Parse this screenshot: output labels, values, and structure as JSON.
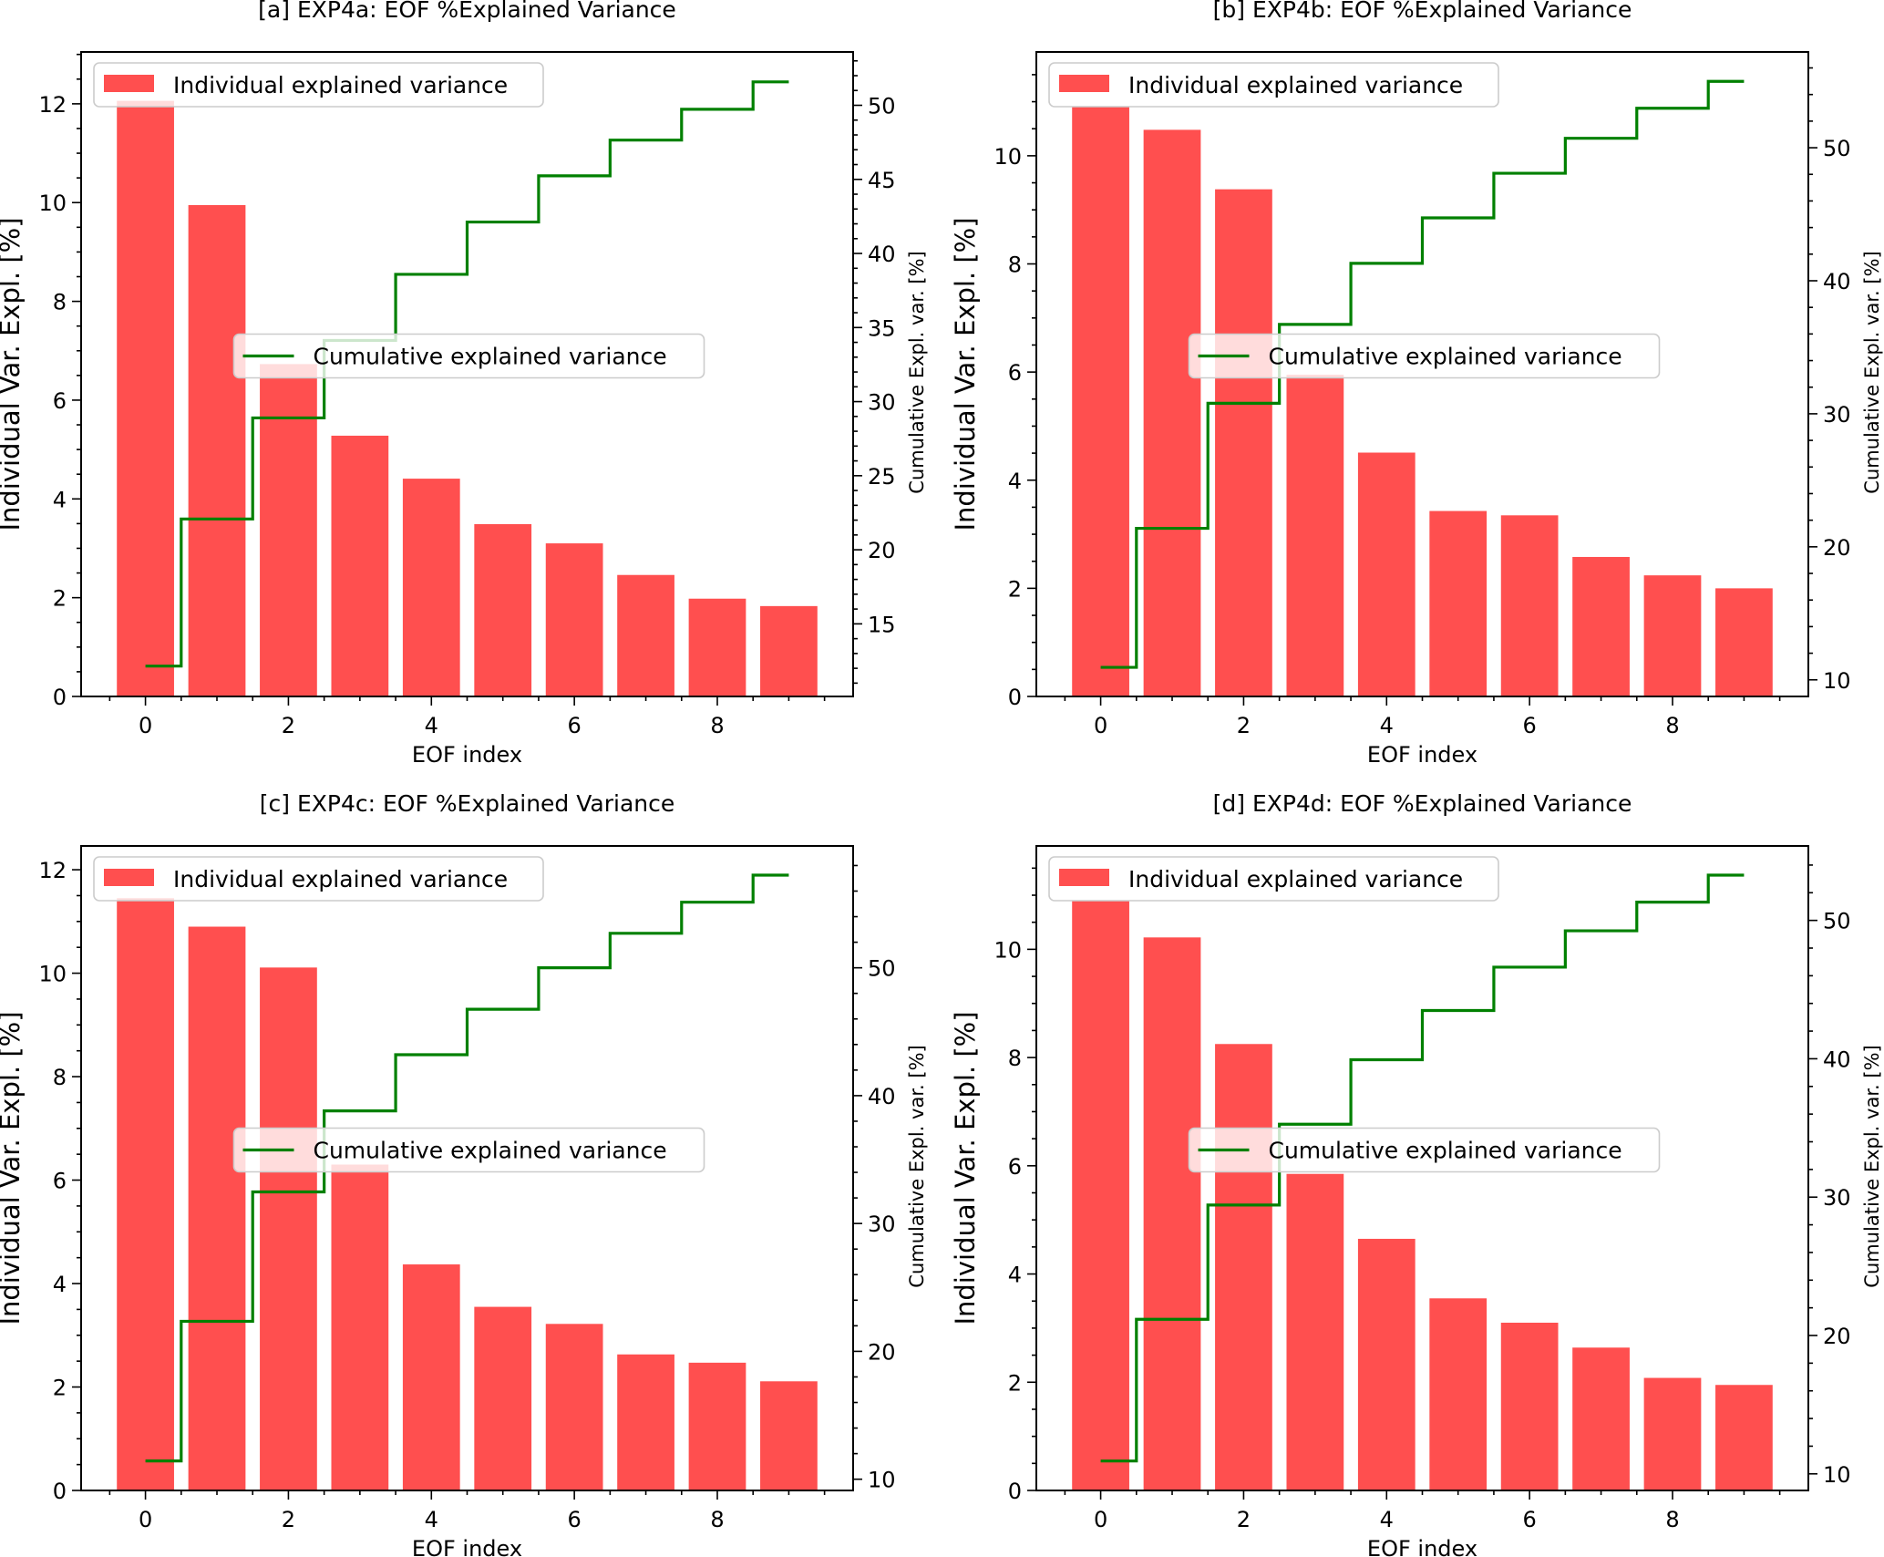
{
  "figure": {
    "layout": "2x2 grid",
    "bar_color": "#FF4F4F",
    "line_color": "#008000",
    "legend_frame_color": "#CCCCCC"
  },
  "chart_data": [
    {
      "type": "bar",
      "panel": "a",
      "title": "[a] EXP4a: EOF %Explained Variance",
      "xlabel": "EOF index",
      "ylabel": "Individual Var. Expl. [%]",
      "y2label": "Cumulative Expl. var. [%]",
      "categories": [
        0,
        1,
        2,
        3,
        4,
        5,
        6,
        7,
        8,
        9
      ],
      "xlim": [
        -0.9,
        9.9
      ],
      "xticks": [
        0,
        2,
        4,
        6,
        8
      ],
      "ylim": [
        0,
        13.05
      ],
      "yticks": [
        0,
        2,
        4,
        6,
        8,
        10,
        12
      ],
      "y2lim": [
        10.1,
        53.6
      ],
      "y2ticks": [
        15,
        20,
        25,
        30,
        35,
        40,
        45,
        50
      ],
      "y2minor_step": 1,
      "series": [
        {
          "name": "Individual explained variance",
          "type": "bar",
          "axis": "left",
          "values": [
            12.06,
            9.95,
            6.73,
            5.28,
            4.41,
            3.49,
            3.1,
            2.46,
            1.98,
            1.83
          ]
        },
        {
          "name": "Cumulative explained variance",
          "type": "step",
          "axis": "right",
          "values": [
            12.15,
            22.08,
            28.9,
            34.13,
            38.59,
            42.12,
            45.24,
            47.65,
            49.73,
            51.58
          ]
        }
      ],
      "legend": [
        {
          "label": "Individual explained variance",
          "placement": "upper-left"
        },
        {
          "label": "Cumulative explained variance",
          "placement": "center"
        }
      ]
    },
    {
      "type": "bar",
      "panel": "b",
      "title": "[b] EXP4b: EOF %Explained Variance",
      "xlabel": "EOF index",
      "ylabel": "Individual Var. Expl. [%]",
      "y2label": "Cumulative Expl. var. [%]",
      "categories": [
        0,
        1,
        2,
        3,
        4,
        5,
        6,
        7,
        8,
        9
      ],
      "xlim": [
        -0.9,
        9.9
      ],
      "xticks": [
        0,
        2,
        4,
        6,
        8
      ],
      "ylim": [
        0,
        11.92
      ],
      "yticks": [
        0,
        2,
        4,
        6,
        8,
        10
      ],
      "y2lim": [
        8.75,
        57.2
      ],
      "y2ticks": [
        10,
        20,
        30,
        40,
        50
      ],
      "y2minor_step": 2,
      "series": [
        {
          "name": "Individual explained variance",
          "type": "bar",
          "axis": "left",
          "values": [
            10.9,
            10.48,
            9.38,
            5.95,
            4.51,
            3.43,
            3.35,
            2.58,
            2.24,
            2.0
          ]
        },
        {
          "name": "Cumulative explained variance",
          "type": "step",
          "axis": "right",
          "values": [
            10.94,
            21.39,
            30.79,
            36.72,
            41.31,
            44.73,
            48.08,
            50.71,
            52.97,
            54.99
          ]
        }
      ],
      "legend": [
        {
          "label": "Individual explained variance",
          "placement": "upper-left"
        },
        {
          "label": "Cumulative explained variance",
          "placement": "center"
        }
      ]
    },
    {
      "type": "bar",
      "panel": "c",
      "title": "[c] EXP4c: EOF %Explained Variance",
      "xlabel": "EOF index",
      "ylabel": "Individual Var. Expl. [%]",
      "y2label": "Cumulative Expl. var. [%]",
      "categories": [
        0,
        1,
        2,
        3,
        4,
        5,
        6,
        7,
        8,
        9
      ],
      "xlim": [
        -0.9,
        9.9
      ],
      "xticks": [
        0,
        2,
        4,
        6,
        8
      ],
      "ylim": [
        0,
        12.46
      ],
      "yticks": [
        0,
        2,
        4,
        6,
        8,
        10,
        12
      ],
      "y2lim": [
        9.12,
        59.53
      ],
      "y2ticks": [
        10,
        20,
        30,
        40,
        50
      ],
      "y2minor_step": 2,
      "series": [
        {
          "name": "Individual explained variance",
          "type": "bar",
          "axis": "left",
          "values": [
            11.45,
            10.9,
            10.11,
            6.3,
            4.37,
            3.55,
            3.22,
            2.63,
            2.47,
            2.11
          ]
        },
        {
          "name": "Cumulative explained variance",
          "type": "step",
          "axis": "right",
          "values": [
            11.43,
            22.35,
            32.47,
            38.81,
            43.2,
            46.76,
            50.0,
            52.7,
            55.13,
            57.25
          ]
        }
      ],
      "legend": [
        {
          "label": "Individual explained variance",
          "placement": "upper-left"
        },
        {
          "label": "Cumulative explained variance",
          "placement": "center"
        }
      ]
    },
    {
      "type": "bar",
      "panel": "d",
      "title": "[d] EXP4d: EOF %Explained Variance",
      "xlabel": "EOF index",
      "ylabel": "Individual Var. Expl. [%]",
      "y2label": "Cumulative Expl. var. [%]",
      "categories": [
        0,
        1,
        2,
        3,
        4,
        5,
        6,
        7,
        8,
        9
      ],
      "xlim": [
        -0.9,
        9.9
      ],
      "xticks": [
        0,
        2,
        4,
        6,
        8
      ],
      "ylim": [
        0,
        11.91
      ],
      "yticks": [
        0,
        2,
        4,
        6,
        8,
        10
      ],
      "y2lim": [
        8.8,
        55.38
      ],
      "y2ticks": [
        10,
        20,
        30,
        40,
        50
      ],
      "y2minor_step": 2,
      "series": [
        {
          "name": "Individual explained variance",
          "type": "bar",
          "axis": "left",
          "values": [
            10.89,
            10.22,
            8.25,
            5.85,
            4.65,
            3.55,
            3.1,
            2.64,
            2.08,
            1.95
          ]
        },
        {
          "name": "Cumulative explained variance",
          "type": "step",
          "axis": "right",
          "values": [
            10.93,
            21.17,
            29.43,
            35.27,
            39.93,
            43.49,
            46.62,
            49.25,
            51.32,
            53.27
          ]
        }
      ],
      "legend": [
        {
          "label": "Individual explained variance",
          "placement": "upper-left"
        },
        {
          "label": "Cumulative explained variance",
          "placement": "center"
        }
      ]
    }
  ]
}
